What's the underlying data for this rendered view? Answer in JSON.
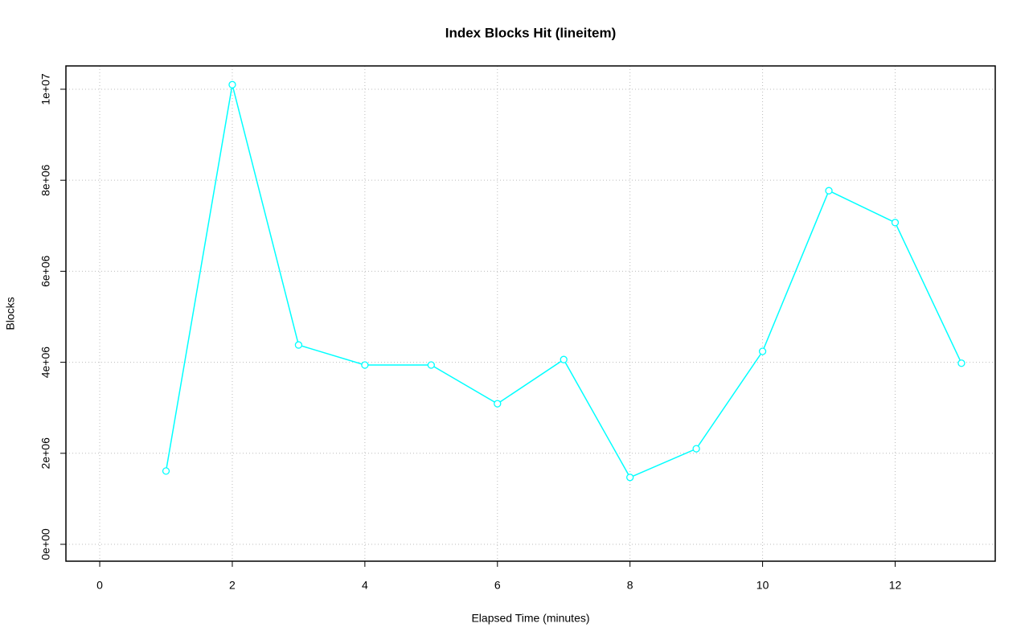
{
  "chart_data": {
    "type": "line",
    "title": "Index Blocks Hit (lineitem)",
    "x_label": "Elapsed Time (minutes)",
    "y_label": "Blocks",
    "x": [
      1,
      2,
      3,
      4,
      5,
      6,
      7,
      8,
      9,
      10,
      11,
      12,
      13
    ],
    "values": [
      1610000,
      10100000,
      4380000,
      3940000,
      3940000,
      3090000,
      4060000,
      1470000,
      2100000,
      4240000,
      7770000,
      7070000,
      3980000
    ],
    "color": "#00ffff",
    "xlim": [
      -0.51,
      13.51
    ],
    "xticks": [
      0,
      2,
      4,
      6,
      8,
      10,
      12
    ],
    "ylim": [
      -371000,
      10512000
    ],
    "yticks": [
      {
        "value": 0,
        "label": "0e+00"
      },
      {
        "value": 2000000,
        "label": "2e+06"
      },
      {
        "value": 4000000,
        "label": "4e+06"
      },
      {
        "value": 6000000,
        "label": "6e+06"
      },
      {
        "value": 8000000,
        "label": "8e+06"
      },
      {
        "value": 10000000,
        "label": "1e+07"
      }
    ],
    "grid": true
  }
}
